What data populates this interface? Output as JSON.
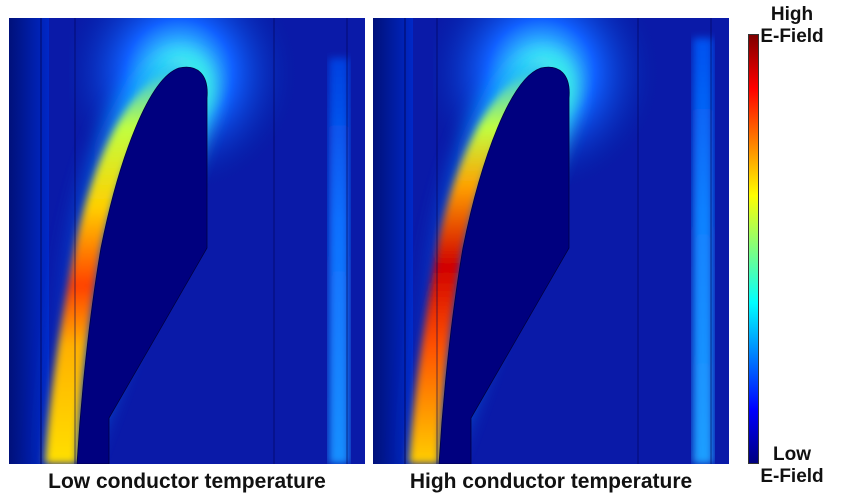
{
  "panels": [
    {
      "caption": "Low conductor temperature"
    },
    {
      "caption": "High conductor temperature"
    }
  ],
  "colorbar": {
    "top_label": [
      "High",
      "E-Field"
    ],
    "bottom_label": [
      "Low",
      "E-Field"
    ],
    "colors": [
      "#00007f",
      "#0000ff",
      "#007fff",
      "#00ffff",
      "#7fff7f",
      "#ffff00",
      "#ff7f00",
      "#ff0000",
      "#7f0000"
    ]
  }
}
